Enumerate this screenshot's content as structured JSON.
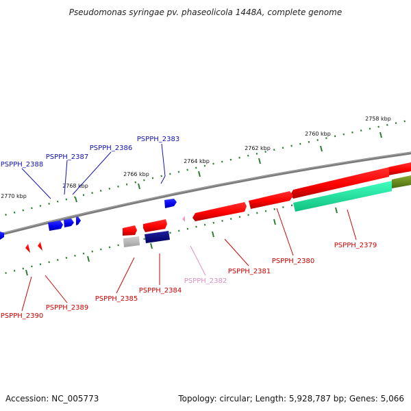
{
  "title": "Pseudomonas syringae pv. phaseolicola 1448A, complete genome",
  "footer": {
    "accession": "Accession: NC_005773",
    "summary": "Topology: circular; Length: 5,928,787 bp; Genes: 5,066"
  },
  "colors": {
    "backbone": "#7a7a7a",
    "tick": "#2e7d32",
    "forward_gene": "#0000ee",
    "reverse_gene": "#ee0000",
    "pseudo_gene": "#f0a0c8",
    "label_blue": "#1010b0",
    "label_red": "#cc0000",
    "label_pink": "#e090c0",
    "aqua_feature": "#20e8a0",
    "olive_feature": "#6a8a20",
    "grey_feature": "#b8b8b8",
    "navy_feature": "#000080"
  },
  "scale_labels": [
    "2758 kbp",
    "2760 kbp",
    "2762 kbp",
    "2764 kbp",
    "2766 kbp",
    "2768 kbp",
    "2770 kbp"
  ],
  "genes": [
    {
      "id": "PSPPH_2379",
      "label": "PSPPH_2379",
      "color": "label_red"
    },
    {
      "id": "PSPPH_2380",
      "label": "PSPPH_2380",
      "color": "label_red"
    },
    {
      "id": "PSPPH_2381",
      "label": "PSPPH_2381",
      "color": "label_red"
    },
    {
      "id": "PSPPH_2382",
      "label": "PSPPH_2382",
      "color": "label_pink"
    },
    {
      "id": "PSPPH_2383",
      "label": "PSPPH_2383",
      "color": "label_blue"
    },
    {
      "id": "PSPPH_2384",
      "label": "PSPPH_2384",
      "color": "label_red"
    },
    {
      "id": "PSPPH_2385",
      "label": "PSPPH_2385",
      "color": "label_red"
    },
    {
      "id": "PSPPH_2386",
      "label": "PSPPH_2386",
      "color": "label_blue"
    },
    {
      "id": "PSPPH_2387",
      "label": "PSPPH_2387",
      "color": "label_blue"
    },
    {
      "id": "PSPPH_2388",
      "label": "PSPPH_2388",
      "color": "label_blue"
    },
    {
      "id": "PSPPH_2389",
      "label": "PSPPH_2389",
      "color": "label_red"
    },
    {
      "id": "PSPPH_2390",
      "label": "PSPPH_2390",
      "color": "label_red"
    }
  ]
}
